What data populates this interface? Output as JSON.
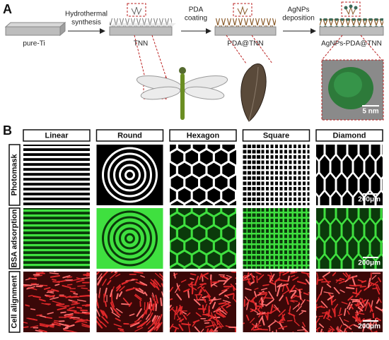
{
  "panel_a": {
    "label": "A",
    "substrate": "pure-Ti",
    "steps": [
      [
        "Hydrothermal",
        "synthesis"
      ],
      [
        "PDA",
        "coating"
      ],
      [
        "AgNPs",
        "deposition"
      ]
    ],
    "products": [
      "TNN",
      "PDA@TNN",
      "AgNPs-PDA@TNN"
    ],
    "scale_bar": "5 nm"
  },
  "panel_b": {
    "label": "B",
    "columns": [
      "Linear",
      "Round",
      "Hexagon",
      "Square",
      "Diamond"
    ],
    "rows": [
      "Photomask",
      "BSA adsorption",
      "Cell alignment"
    ],
    "scale_bars": [
      "200μm",
      "200μm",
      "200μm"
    ]
  }
}
